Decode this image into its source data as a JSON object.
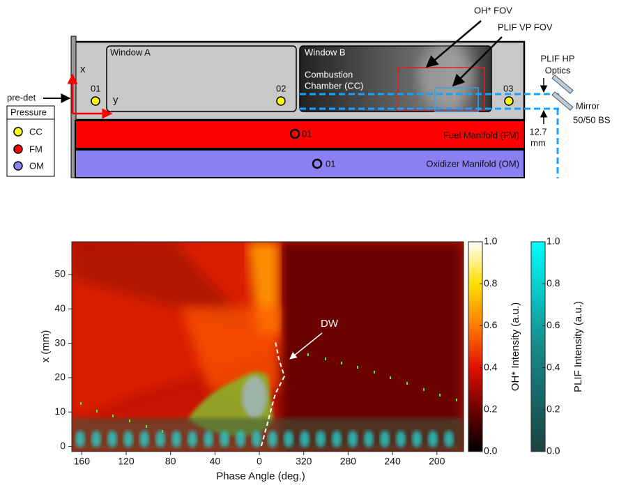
{
  "diagram": {
    "window_a": "Window A",
    "window_b": "Window B",
    "chamber": [
      "Combustion",
      "Chamber (CC)"
    ],
    "axis_x": "x",
    "axis_y": "y",
    "sensors_cc": [
      "01",
      "02",
      "03"
    ],
    "pre_det": "pre-det",
    "legend": {
      "title": "Pressure",
      "items": [
        "CC",
        "FM",
        "OM"
      ]
    },
    "fuel_manifold": "Fuel Manifold (FM)",
    "fm_sensor": "01",
    "oxidizer_manifold": "Oxidizer Manifold (OM)",
    "om_sensor": "01",
    "oh_fov": "OH* FOV",
    "plif_vp_fov": "PLIF VP FOV",
    "plif_hp_optics": [
      "PLIF HP",
      "Optics"
    ],
    "mirror": "Mirror",
    "beam_splitter": "50/50 BS",
    "gap": [
      "12.7",
      "mm"
    ]
  },
  "chart_data": {
    "type": "heatmap",
    "xlabel": "Phase Angle (deg.)",
    "ylabel": "x (mm)",
    "xlim": [
      169,
      176
    ],
    "x_reversed": true,
    "x_wrap": 360,
    "xticks": [
      160,
      120,
      80,
      40,
      0,
      320,
      280,
      240,
      200
    ],
    "ylim": [
      -1.5,
      59.5
    ],
    "yticks": [
      0,
      10,
      20,
      30,
      40,
      50
    ],
    "annotation": "DW",
    "colorbars": [
      {
        "label": "OH* Intensity (a.u.)",
        "lim": [
          0,
          1
        ],
        "colors": [
          "#000000",
          "#6e0000",
          "#e01000",
          "#ff7a00",
          "#ffe000",
          "#ffffff"
        ],
        "ticks": [
          {
            "value": 0,
            "label": "0.0"
          },
          {
            "value": 0.2,
            "label": "0.2"
          },
          {
            "value": 0.4,
            "label": "0.4"
          },
          {
            "value": 0.6,
            "label": "0.6"
          },
          {
            "value": 0.8,
            "label": "0.8"
          },
          {
            "value": 1,
            "label": "1.0"
          }
        ]
      },
      {
        "label": "PLIF Intensity (a.u.)",
        "lim": [
          0,
          1
        ],
        "colors": [
          "#1c4242",
          "#168a8a",
          "#00ffff"
        ],
        "ticks": [
          {
            "value": 0,
            "label": "0.0"
          },
          {
            "value": 0.2,
            "label": "0.2"
          },
          {
            "value": 0.4,
            "label": "0.4"
          },
          {
            "value": 0.6,
            "label": "0.6"
          },
          {
            "value": 0.8,
            "label": "0.8"
          },
          {
            "value": 1,
            "label": "1.0"
          }
        ]
      }
    ]
  }
}
